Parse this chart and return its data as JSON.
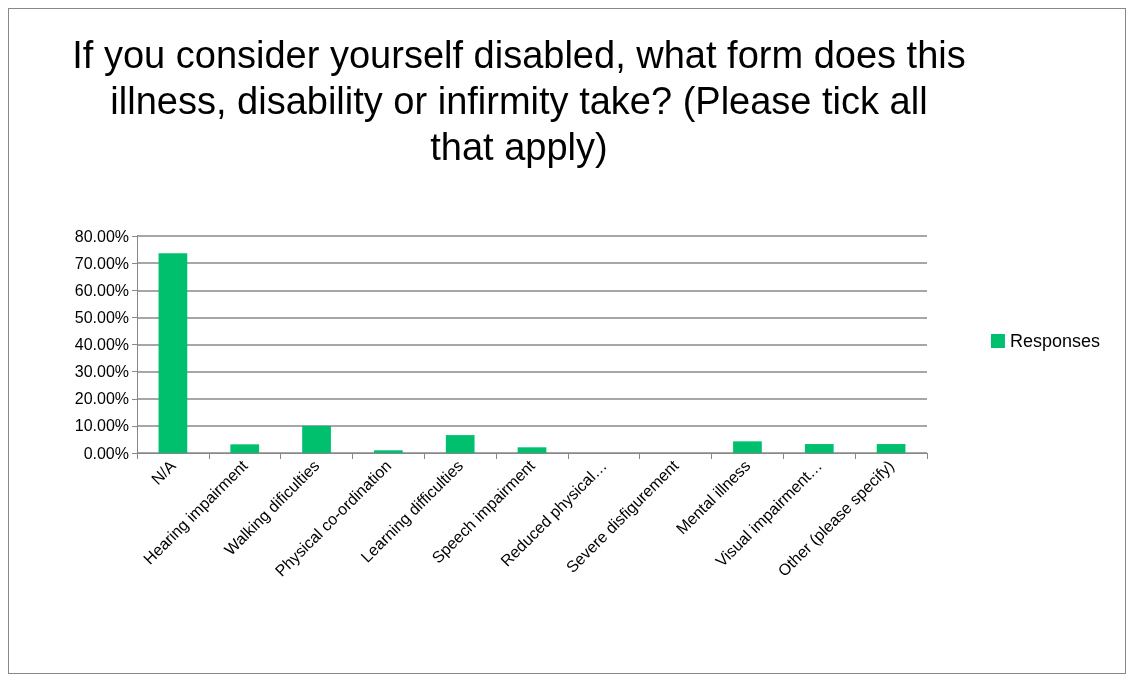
{
  "chart_data": {
    "type": "bar",
    "title": "If you consider yourself disabled, what form does this illness, disability or infirmity take? (Please tick all that apply)",
    "categories": [
      "N/A",
      "Hearing impairment",
      "Walking dificulties",
      "Physical co-ordination",
      "Learning difficulties",
      "Speech impairment",
      "Reduced physical…",
      "Severe disfigurement",
      "Mental illness",
      "Visual impairment…",
      "Other (please specify)"
    ],
    "series": [
      {
        "name": "Responses",
        "color": "#00c06e",
        "values": [
          73.6,
          3.2,
          10.0,
          1.0,
          6.6,
          2.1,
          0,
          0,
          4.3,
          3.3,
          3.3
        ]
      }
    ],
    "ylim": [
      0,
      80
    ],
    "yticks": [
      {
        "value": 0,
        "label": "0.00%"
      },
      {
        "value": 10,
        "label": "10.00%"
      },
      {
        "value": 20,
        "label": "20.00%"
      },
      {
        "value": 30,
        "label": "30.00%"
      },
      {
        "value": 40,
        "label": "40.00%"
      },
      {
        "value": 50,
        "label": "50.00%"
      },
      {
        "value": 60,
        "label": "60.00%"
      },
      {
        "value": 70,
        "label": "70.00%"
      },
      {
        "value": 80,
        "label": "80.00%"
      }
    ],
    "grid": "y",
    "legend": "right"
  }
}
